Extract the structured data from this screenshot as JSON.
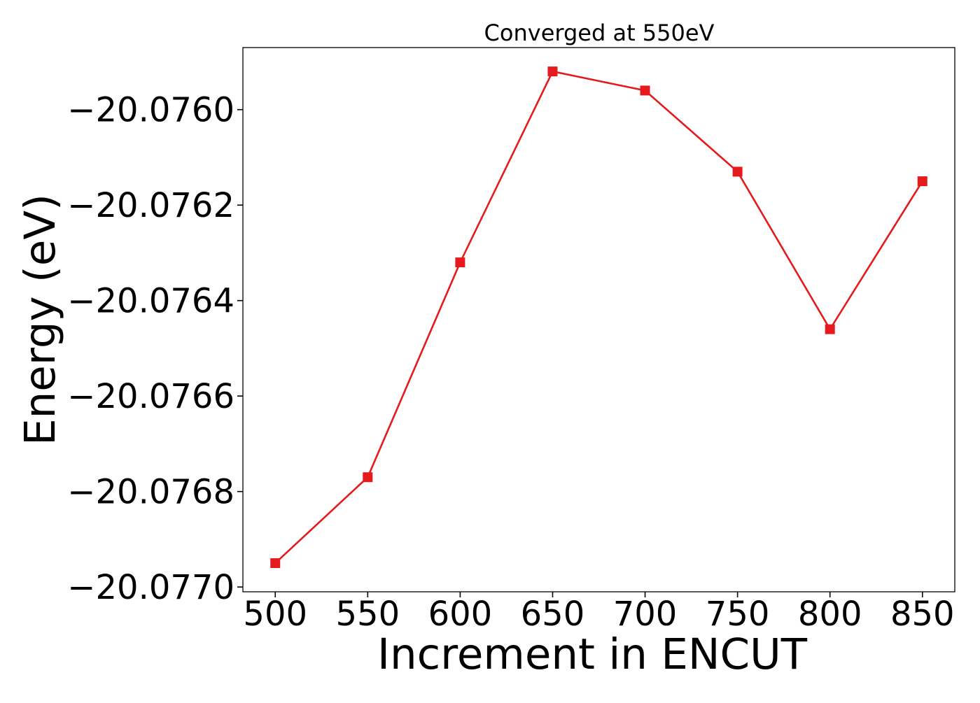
{
  "chart_data": {
    "type": "line",
    "title": "Converged at 550eV",
    "xlabel": "Increment in ENCUT",
    "ylabel": "Energy (eV)",
    "x": [
      500,
      550,
      600,
      650,
      700,
      750,
      800,
      850
    ],
    "series": [
      {
        "values": [
          -20.07695,
          -20.07677,
          -20.07632,
          -20.07592,
          -20.07596,
          -20.07613,
          -20.07646,
          -20.07615
        ],
        "color": "#e41a1c",
        "marker": "square"
      }
    ],
    "xticks": [
      "500",
      "550",
      "600",
      "650",
      "700",
      "750",
      "800",
      "850"
    ],
    "yticks": [
      "−20.0760",
      "−20.0762",
      "−20.0764",
      "−20.0766",
      "−20.0768",
      "−20.0770"
    ],
    "xlim": [
      482.5,
      867.5
    ],
    "ylim": [
      -20.07701,
      -20.07587
    ],
    "grid": false
  }
}
